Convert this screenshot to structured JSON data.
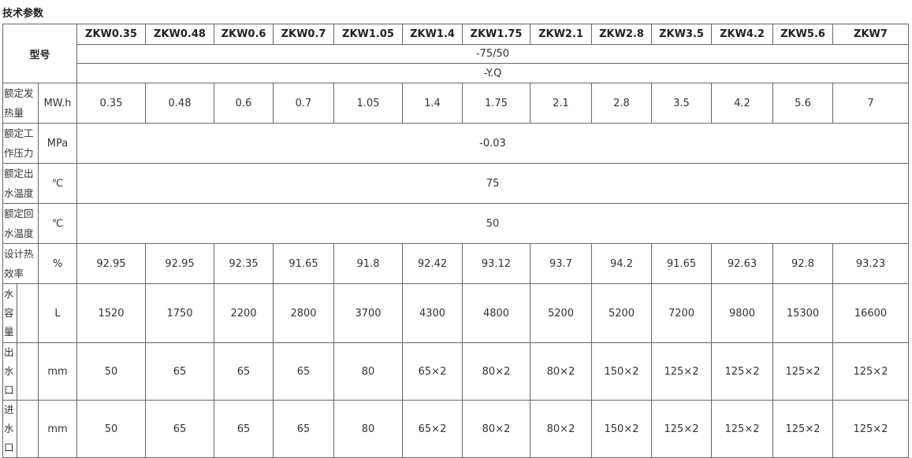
{
  "title": "技术参数",
  "header": {
    "label": "型号",
    "models": [
      "ZKW0.35",
      "ZKW0.48",
      "ZKW0.6",
      "ZKW0.7",
      "ZKW1.05",
      "ZKW1.4",
      "ZKW1.75",
      "ZKW2.1",
      "ZKW2.8",
      "ZKW3.5",
      "ZKW4.2",
      "ZKW5.6",
      "ZKW7"
    ],
    "suffix1": "-75/50",
    "suffix2": "-Y.Q"
  },
  "rows": [
    {
      "label": "额定发热量",
      "unit": "MW.h",
      "values": [
        "0.35",
        "0.48",
        "0.6",
        "0.7",
        "1.05",
        "1.4",
        "1.75",
        "2.1",
        "2.8",
        "3.5",
        "4.2",
        "5.6",
        "7"
      ]
    },
    {
      "label": "额定工作压力",
      "unit": "MPa",
      "value": "-0.03"
    },
    {
      "label": "额定出水温度",
      "unit": "℃",
      "value": "75"
    },
    {
      "label": "额定回水温度",
      "unit": "℃",
      "value": "50"
    },
    {
      "label": "设计热效率",
      "unit": "%",
      "values": [
        "92.95",
        "92.95",
        "92.35",
        "91.65",
        "91.8",
        "92.42",
        "93.12",
        "93.7",
        "94.2",
        "91.65",
        "92.63",
        "92.8",
        "93.23"
      ]
    },
    {
      "label": "水容量",
      "unit": "L",
      "values": [
        "1520",
        "1750",
        "2200",
        "2800",
        "3700",
        "4300",
        "4800",
        "5200",
        "5200",
        "7200",
        "9800",
        "15300",
        "16600"
      ]
    },
    {
      "label": "出水口",
      "unit": "mm",
      "values": [
        "50",
        "65",
        "65",
        "65",
        "80",
        "65×2",
        "80×2",
        "80×2",
        "150×2",
        "125×2",
        "125×2",
        "125×2",
        "125×2"
      ]
    },
    {
      "label": "进水口",
      "unit": "mm",
      "values": [
        "50",
        "65",
        "65",
        "65",
        "80",
        "65×2",
        "80×2",
        "80×2",
        "150×2",
        "125×2",
        "125×2",
        "125×2",
        "125×2"
      ]
    }
  ]
}
